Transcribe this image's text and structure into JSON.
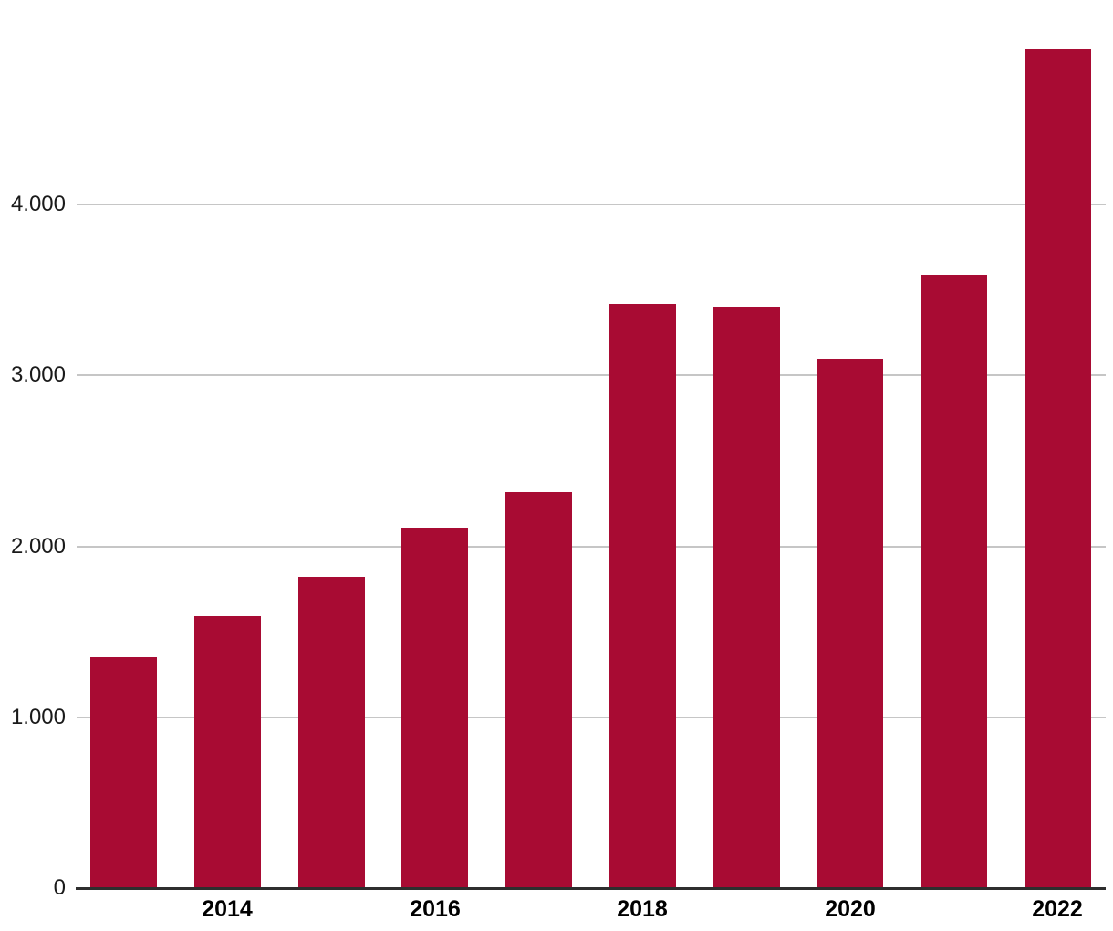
{
  "chart_data": {
    "type": "bar",
    "title": "",
    "xlabel": "",
    "ylabel": "",
    "x": [
      2013,
      2014,
      2015,
      2016,
      2017,
      2018,
      2019,
      2020,
      2021,
      2022
    ],
    "values": [
      1350,
      1590,
      1820,
      2110,
      2320,
      3420,
      3400,
      3100,
      3590,
      4910
    ],
    "xtick_labels": [
      "2014",
      "2016",
      "2018",
      "2020",
      "2022"
    ],
    "xtick_indices": [
      1,
      3,
      5,
      7,
      9
    ],
    "ytick_values": [
      0,
      1000,
      2000,
      3000,
      4000
    ],
    "ytick_labels": [
      "0",
      "1.000",
      "2.000",
      "3.000",
      "4.000"
    ],
    "ylim": [
      0,
      5000
    ],
    "grid": "horizontal-only",
    "legend": "none",
    "colors": {
      "bar": "#a80b33",
      "gridline": "#c6c6c6",
      "axis_line": "#2e2e2e",
      "tick_label": "#1a1a1a"
    }
  }
}
